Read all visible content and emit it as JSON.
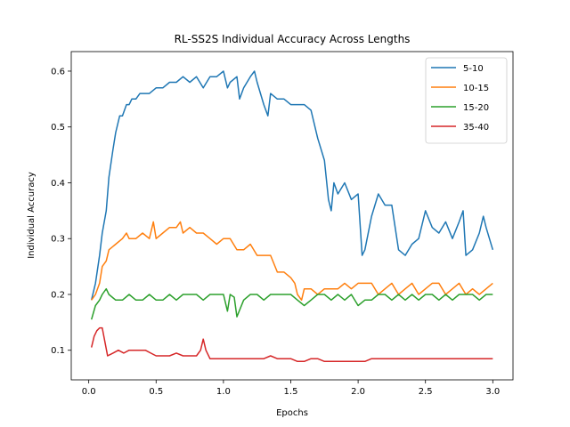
{
  "chart_data": {
    "type": "line",
    "title": "RL-SS2S Individual Accuracy Across Lengths",
    "xlabel": "Epochs",
    "ylabel": "Individual Accuracy",
    "xlim": [
      -0.13,
      3.15
    ],
    "ylim": [
      0.047,
      0.635
    ],
    "xticks": [
      "0.0",
      "0.5",
      "1.0",
      "1.5",
      "2.0",
      "2.5",
      "3.0"
    ],
    "yticks": [
      "0.1",
      "0.2",
      "0.3",
      "0.4",
      "0.5",
      "0.6"
    ],
    "grid": false,
    "legend_position": "top-right",
    "series": [
      {
        "name": "5-10",
        "color": "#1f77b4",
        "x": [
          0.02,
          0.05,
          0.08,
          0.1,
          0.13,
          0.15,
          0.18,
          0.2,
          0.23,
          0.25,
          0.28,
          0.3,
          0.32,
          0.35,
          0.38,
          0.4,
          0.45,
          0.5,
          0.55,
          0.6,
          0.65,
          0.7,
          0.75,
          0.8,
          0.85,
          0.9,
          0.95,
          1.0,
          1.03,
          1.05,
          1.1,
          1.12,
          1.15,
          1.2,
          1.23,
          1.25,
          1.3,
          1.33,
          1.35,
          1.4,
          1.45,
          1.5,
          1.55,
          1.6,
          1.65,
          1.7,
          1.75,
          1.78,
          1.8,
          1.82,
          1.85,
          1.9,
          1.95,
          2.0,
          2.03,
          2.05,
          2.1,
          2.15,
          2.2,
          2.25,
          2.3,
          2.35,
          2.4,
          2.45,
          2.5,
          2.55,
          2.6,
          2.65,
          2.7,
          2.75,
          2.78,
          2.8,
          2.85,
          2.9,
          2.93,
          2.95,
          3.0
        ],
        "values": [
          0.19,
          0.22,
          0.27,
          0.31,
          0.35,
          0.41,
          0.46,
          0.49,
          0.52,
          0.52,
          0.54,
          0.54,
          0.55,
          0.55,
          0.56,
          0.56,
          0.56,
          0.57,
          0.57,
          0.58,
          0.58,
          0.59,
          0.58,
          0.59,
          0.57,
          0.59,
          0.59,
          0.6,
          0.57,
          0.58,
          0.59,
          0.55,
          0.57,
          0.59,
          0.6,
          0.58,
          0.54,
          0.52,
          0.56,
          0.55,
          0.55,
          0.54,
          0.54,
          0.54,
          0.53,
          0.48,
          0.44,
          0.37,
          0.35,
          0.4,
          0.38,
          0.4,
          0.37,
          0.38,
          0.27,
          0.28,
          0.34,
          0.38,
          0.36,
          0.36,
          0.28,
          0.27,
          0.29,
          0.3,
          0.35,
          0.32,
          0.31,
          0.33,
          0.3,
          0.33,
          0.35,
          0.27,
          0.28,
          0.31,
          0.34,
          0.32,
          0.28
        ]
      },
      {
        "name": "10-15",
        "color": "#ff7f0e",
        "x": [
          0.02,
          0.05,
          0.08,
          0.1,
          0.13,
          0.15,
          0.2,
          0.25,
          0.28,
          0.3,
          0.35,
          0.4,
          0.45,
          0.48,
          0.5,
          0.55,
          0.6,
          0.65,
          0.68,
          0.7,
          0.75,
          0.8,
          0.85,
          0.9,
          0.95,
          1.0,
          1.05,
          1.1,
          1.15,
          1.2,
          1.25,
          1.3,
          1.35,
          1.4,
          1.45,
          1.5,
          1.53,
          1.55,
          1.58,
          1.6,
          1.65,
          1.7,
          1.75,
          1.8,
          1.85,
          1.9,
          1.95,
          2.0,
          2.05,
          2.1,
          2.15,
          2.2,
          2.25,
          2.3,
          2.35,
          2.4,
          2.45,
          2.5,
          2.55,
          2.6,
          2.65,
          2.7,
          2.75,
          2.8,
          2.85,
          2.9,
          2.95,
          3.0
        ],
        "values": [
          0.19,
          0.2,
          0.22,
          0.25,
          0.26,
          0.28,
          0.29,
          0.3,
          0.31,
          0.3,
          0.3,
          0.31,
          0.3,
          0.33,
          0.3,
          0.31,
          0.32,
          0.32,
          0.33,
          0.31,
          0.32,
          0.31,
          0.31,
          0.3,
          0.29,
          0.3,
          0.3,
          0.28,
          0.28,
          0.29,
          0.27,
          0.27,
          0.27,
          0.24,
          0.24,
          0.23,
          0.22,
          0.2,
          0.19,
          0.21,
          0.21,
          0.2,
          0.21,
          0.21,
          0.21,
          0.22,
          0.21,
          0.22,
          0.22,
          0.22,
          0.2,
          0.21,
          0.22,
          0.2,
          0.21,
          0.22,
          0.2,
          0.21,
          0.22,
          0.22,
          0.2,
          0.21,
          0.22,
          0.2,
          0.21,
          0.2,
          0.21,
          0.22
        ]
      },
      {
        "name": "15-20",
        "color": "#2ca02c",
        "x": [
          0.02,
          0.05,
          0.08,
          0.1,
          0.13,
          0.15,
          0.2,
          0.25,
          0.3,
          0.35,
          0.4,
          0.45,
          0.5,
          0.55,
          0.6,
          0.65,
          0.7,
          0.75,
          0.8,
          0.85,
          0.9,
          0.95,
          1.0,
          1.03,
          1.05,
          1.08,
          1.1,
          1.15,
          1.2,
          1.25,
          1.3,
          1.35,
          1.4,
          1.45,
          1.5,
          1.55,
          1.6,
          1.65,
          1.7,
          1.75,
          1.8,
          1.85,
          1.9,
          1.95,
          2.0,
          2.05,
          2.1,
          2.15,
          2.2,
          2.25,
          2.3,
          2.35,
          2.4,
          2.45,
          2.5,
          2.55,
          2.6,
          2.65,
          2.7,
          2.75,
          2.8,
          2.85,
          2.9,
          2.95,
          3.0
        ],
        "values": [
          0.155,
          0.18,
          0.19,
          0.2,
          0.21,
          0.2,
          0.19,
          0.19,
          0.2,
          0.19,
          0.19,
          0.2,
          0.19,
          0.19,
          0.2,
          0.19,
          0.2,
          0.2,
          0.2,
          0.19,
          0.2,
          0.2,
          0.2,
          0.17,
          0.2,
          0.195,
          0.16,
          0.19,
          0.2,
          0.2,
          0.19,
          0.2,
          0.2,
          0.2,
          0.2,
          0.19,
          0.18,
          0.19,
          0.2,
          0.2,
          0.19,
          0.2,
          0.19,
          0.2,
          0.18,
          0.19,
          0.19,
          0.2,
          0.2,
          0.19,
          0.2,
          0.19,
          0.2,
          0.19,
          0.2,
          0.2,
          0.19,
          0.2,
          0.19,
          0.2,
          0.2,
          0.2,
          0.19,
          0.2,
          0.2
        ]
      },
      {
        "name": "35-40",
        "color": "#d62728",
        "x": [
          0.02,
          0.04,
          0.06,
          0.08,
          0.1,
          0.12,
          0.14,
          0.18,
          0.22,
          0.26,
          0.3,
          0.34,
          0.38,
          0.42,
          0.46,
          0.5,
          0.55,
          0.6,
          0.65,
          0.7,
          0.75,
          0.8,
          0.83,
          0.85,
          0.87,
          0.9,
          0.95,
          1.0,
          1.05,
          1.1,
          1.15,
          1.2,
          1.25,
          1.3,
          1.35,
          1.4,
          1.45,
          1.5,
          1.55,
          1.6,
          1.65,
          1.7,
          1.75,
          1.8,
          1.85,
          1.9,
          1.95,
          2.0,
          2.05,
          2.1,
          2.15,
          2.2,
          2.25,
          2.3,
          2.35,
          2.4,
          2.45,
          2.5,
          2.55,
          2.6,
          2.65,
          2.7,
          2.75,
          2.8,
          2.85,
          2.9,
          2.95,
          3.0
        ],
        "values": [
          0.105,
          0.125,
          0.135,
          0.14,
          0.14,
          0.115,
          0.09,
          0.095,
          0.1,
          0.095,
          0.1,
          0.1,
          0.1,
          0.1,
          0.095,
          0.09,
          0.09,
          0.09,
          0.095,
          0.09,
          0.09,
          0.09,
          0.1,
          0.12,
          0.1,
          0.085,
          0.085,
          0.085,
          0.085,
          0.085,
          0.085,
          0.085,
          0.085,
          0.085,
          0.09,
          0.085,
          0.085,
          0.085,
          0.08,
          0.08,
          0.085,
          0.085,
          0.08,
          0.08,
          0.08,
          0.08,
          0.08,
          0.08,
          0.08,
          0.085,
          0.085,
          0.085,
          0.085,
          0.085,
          0.085,
          0.085,
          0.085,
          0.085,
          0.085,
          0.085,
          0.085,
          0.085,
          0.085,
          0.085,
          0.085,
          0.085,
          0.085,
          0.085
        ]
      }
    ]
  }
}
